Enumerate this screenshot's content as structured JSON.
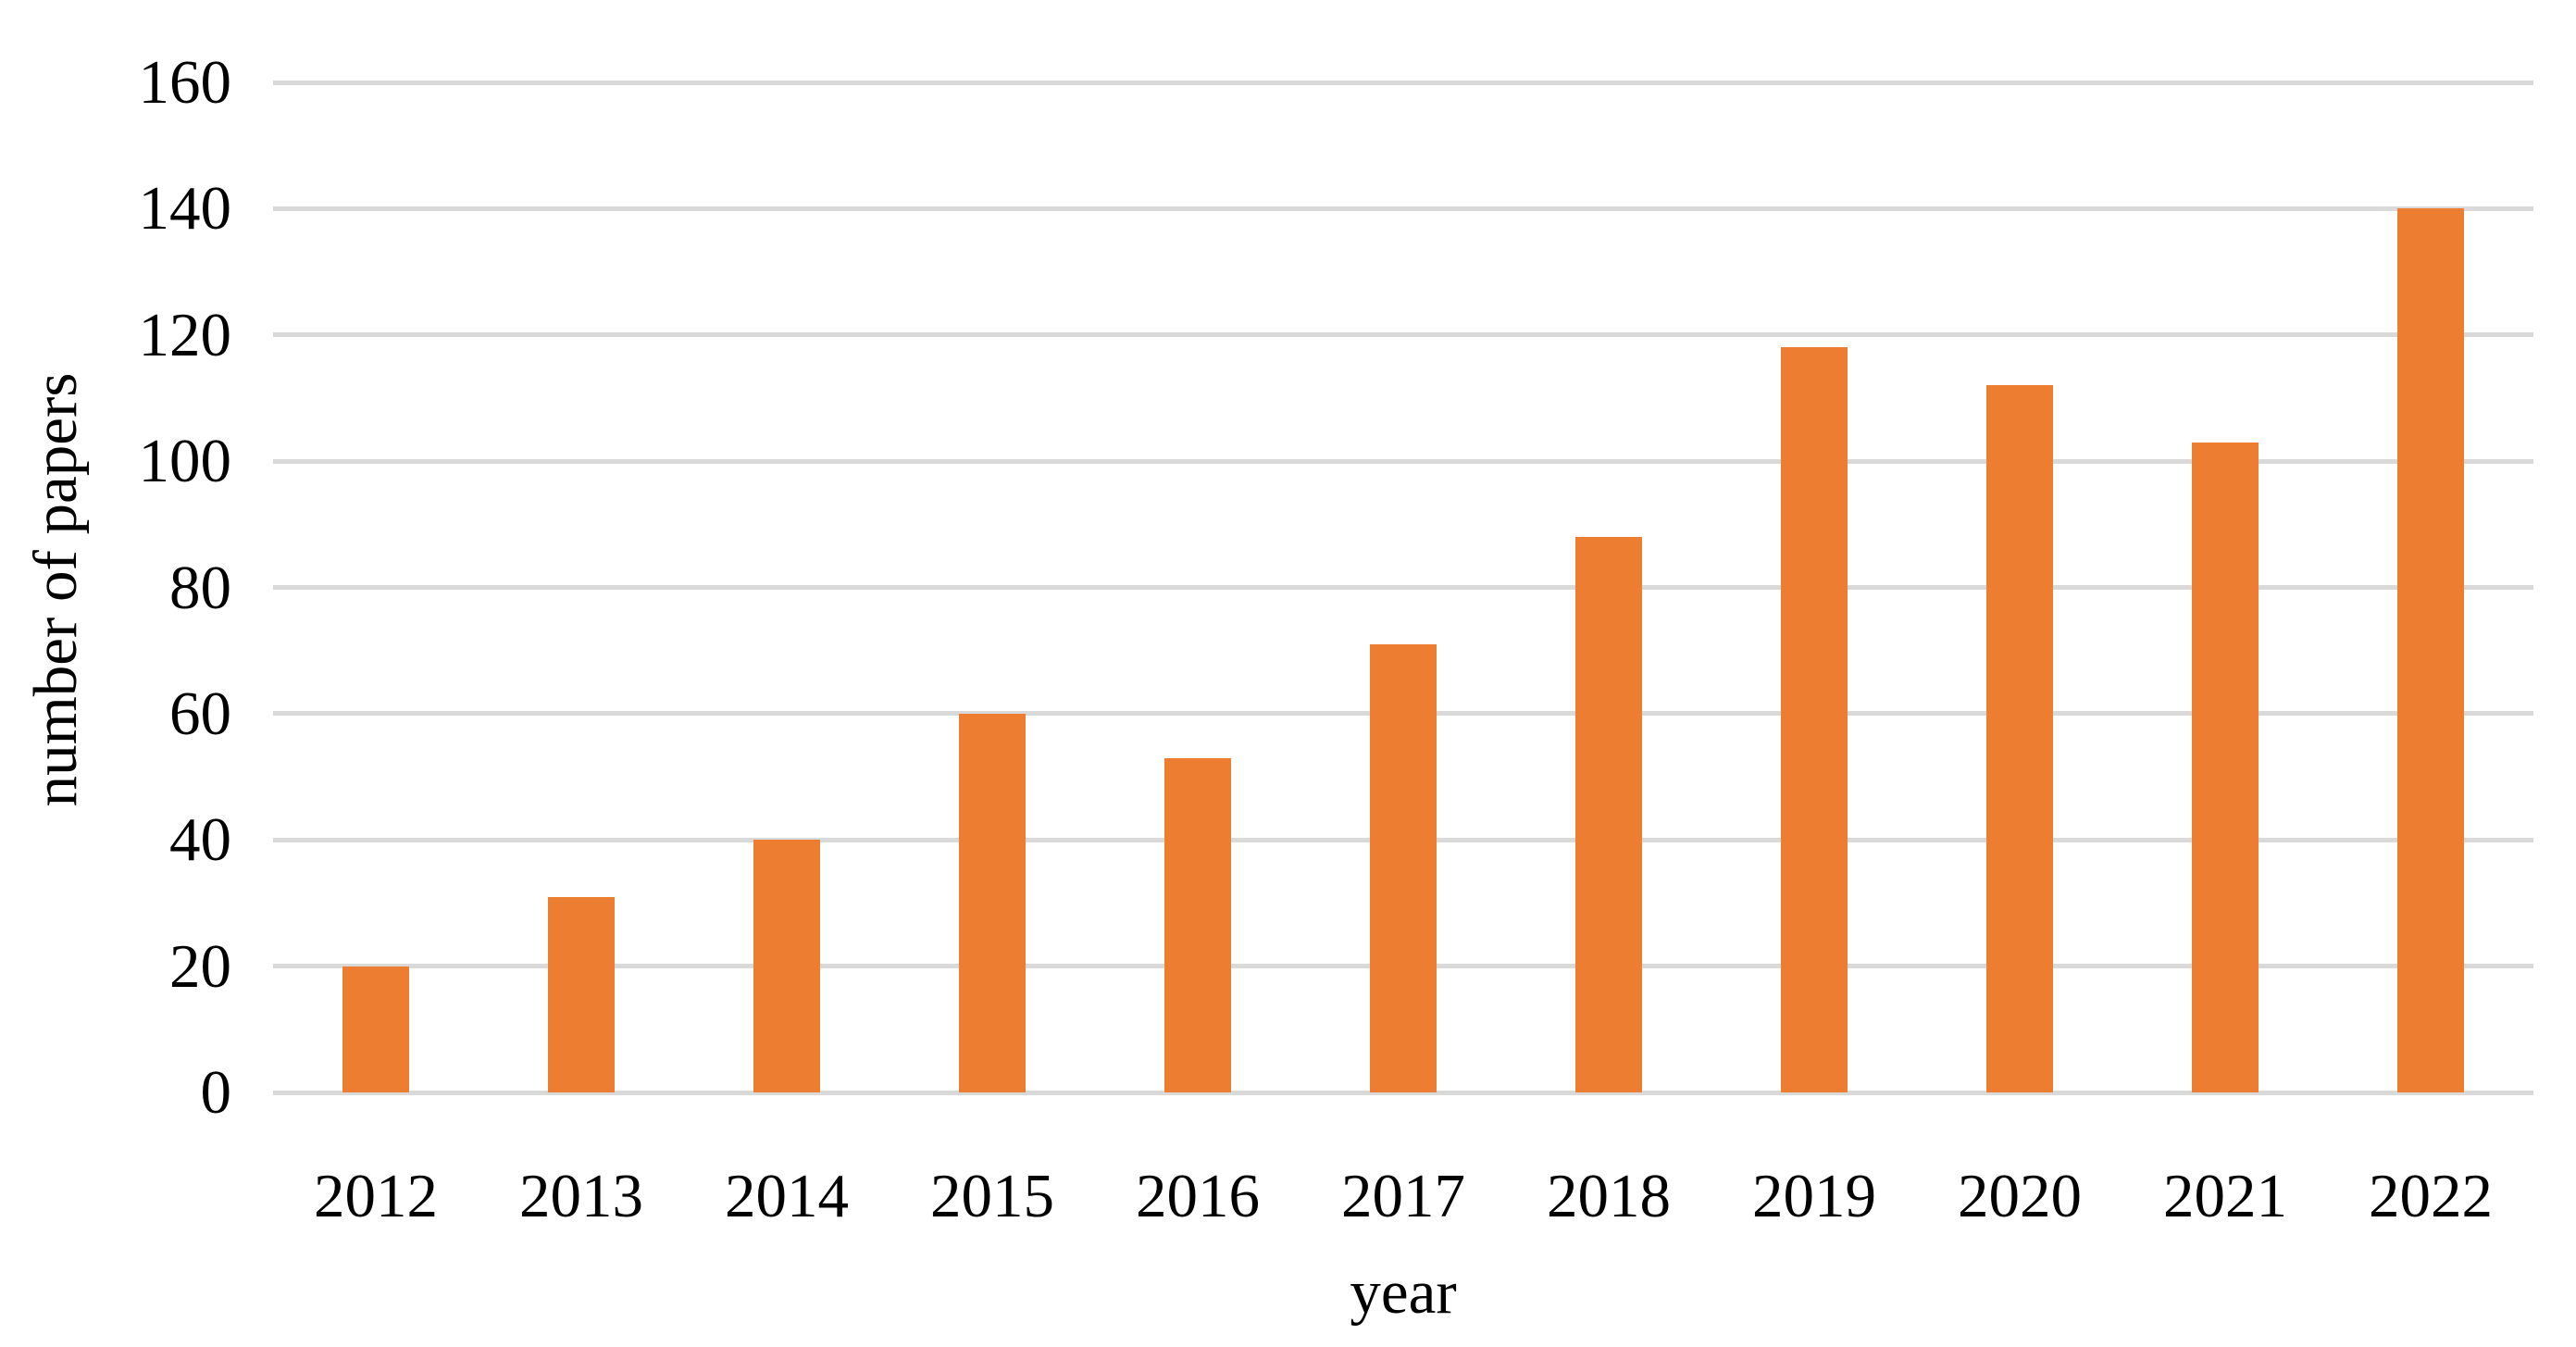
{
  "figure": {
    "background": "#FFFFFF"
  },
  "chart_data": {
    "type": "bar",
    "title": "",
    "categories": [
      "2012",
      "2013",
      "2014",
      "2015",
      "2016",
      "2017",
      "2018",
      "2019",
      "2020",
      "2021",
      "2022"
    ],
    "values": [
      20,
      31,
      40,
      60,
      53,
      71,
      88,
      118,
      112,
      103,
      140
    ],
    "xlabel": "year",
    "ylabel": "number of papers",
    "ylim": [
      0,
      160
    ],
    "yticks": [
      0,
      20,
      40,
      60,
      80,
      100,
      120,
      140,
      160
    ],
    "grid": "horizontal-only",
    "legend": "none",
    "bar_color": "#ED7D31",
    "gridline_color": "#D9D9D9",
    "text_color": "#000000"
  }
}
